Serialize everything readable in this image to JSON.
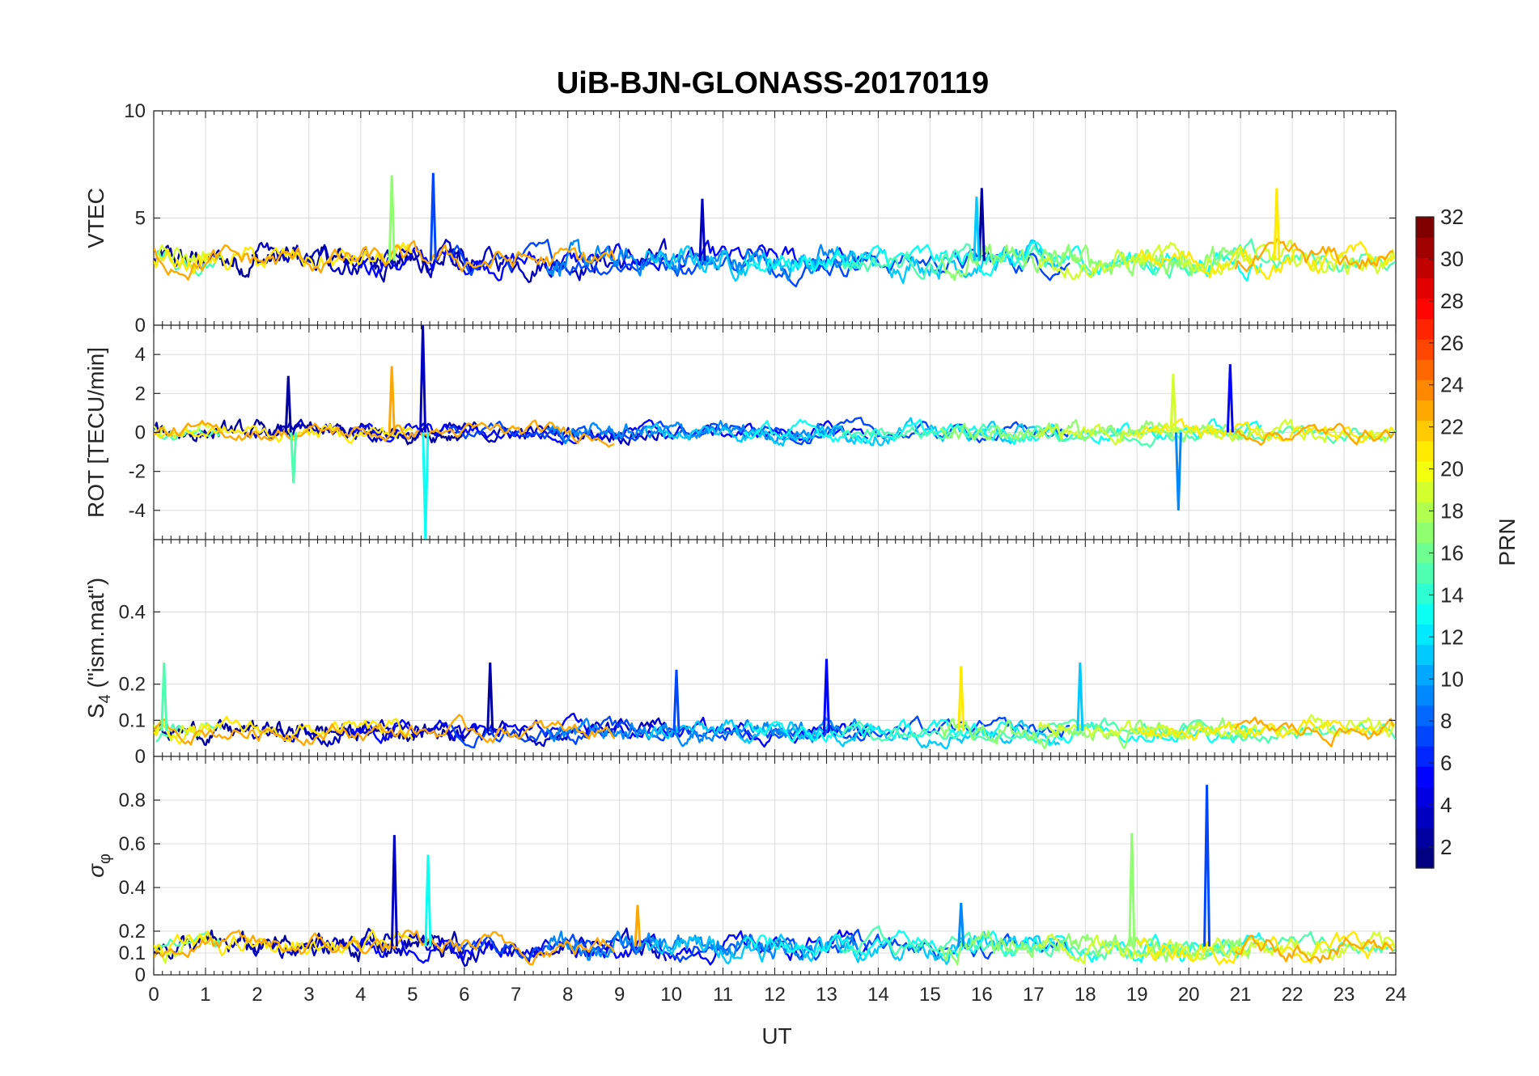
{
  "chart_data": {
    "type": "line",
    "title": "UiB-BJN-GLONASS-20170119",
    "xlabel": "UT",
    "xlim": [
      0,
      24
    ],
    "xticks": [
      "0",
      "1",
      "2",
      "3",
      "4",
      "5",
      "6",
      "7",
      "8",
      "9",
      "10",
      "11",
      "12",
      "13",
      "14",
      "15",
      "16",
      "17",
      "18",
      "19",
      "20",
      "21",
      "22",
      "23",
      "24"
    ],
    "grid": true,
    "panels": [
      {
        "id": "vtec",
        "ylabel": "VTEC",
        "ylim": [
          0,
          10
        ],
        "yticks": [
          "0",
          "5",
          "10"
        ],
        "ytick_values": [
          0,
          5,
          10
        ],
        "baseline": 3.0,
        "noise": 0.35,
        "spikes": [
          [
            16.0,
            6.4
          ],
          [
            15.9,
            6.0
          ],
          [
            21.7,
            6.4
          ],
          [
            5.4,
            7.1
          ],
          [
            4.6,
            7.0
          ],
          [
            10.6,
            5.9
          ]
        ]
      },
      {
        "id": "rot",
        "ylabel": "ROT [TECU/min]",
        "ylim": [
          -5.5,
          5.5
        ],
        "yticks": [
          "-4",
          "-2",
          "0",
          "2",
          "4"
        ],
        "ytick_values": [
          -4,
          -2,
          0,
          2,
          4
        ],
        "baseline": 0.0,
        "noise": 0.25,
        "spikes": [
          [
            5.2,
            5.5
          ],
          [
            5.25,
            -5.5
          ],
          [
            4.6,
            3.4
          ],
          [
            19.8,
            -4.0
          ],
          [
            19.7,
            3.0
          ],
          [
            20.8,
            3.5
          ],
          [
            2.7,
            -2.6
          ],
          [
            2.6,
            2.9
          ]
        ]
      },
      {
        "id": "s4",
        "ylabel_main": "S",
        "ylabel_sub": "4",
        "ylabel_rest": " (\"ism.mat\")",
        "ylim": [
          0,
          0.6
        ],
        "yticks": [
          "0",
          "0.1",
          "0.2",
          "0.4"
        ],
        "ytick_values": [
          0,
          0.1,
          0.2,
          0.4
        ],
        "baseline": 0.07,
        "noise": 0.015,
        "spikes": [
          [
            13.0,
            0.27
          ],
          [
            0.2,
            0.26
          ],
          [
            6.5,
            0.26
          ],
          [
            17.9,
            0.26
          ],
          [
            15.6,
            0.25
          ],
          [
            10.1,
            0.24
          ]
        ]
      },
      {
        "id": "sigma",
        "ylabel_main": "σ",
        "ylabel_sub": "φ",
        "ylim": [
          0,
          1
        ],
        "yticks": [
          "0",
          "0.1",
          "0.2",
          "0.4",
          "0.6",
          "0.8"
        ],
        "ytick_values": [
          0,
          0.1,
          0.2,
          0.4,
          0.6,
          0.8
        ],
        "baseline": 0.13,
        "noise": 0.03,
        "spikes": [
          [
            20.35,
            0.87
          ],
          [
            18.9,
            0.65
          ],
          [
            4.65,
            0.64
          ],
          [
            5.3,
            0.55
          ],
          [
            9.35,
            0.32
          ],
          [
            15.6,
            0.33
          ]
        ]
      }
    ],
    "colorbar": {
      "label": "PRN",
      "range": [
        1,
        32
      ],
      "ticks": [
        "2",
        "4",
        "6",
        "8",
        "10",
        "12",
        "14",
        "16",
        "18",
        "20",
        "22",
        "24",
        "26",
        "28",
        "30",
        "32"
      ],
      "tick_values": [
        2,
        4,
        6,
        8,
        10,
        12,
        14,
        16,
        18,
        20,
        22,
        24,
        26,
        28,
        30,
        32
      ],
      "colormap": "jet"
    },
    "series_prns": [
      2,
      3,
      5,
      7,
      9,
      11,
      13,
      15,
      17,
      19,
      21,
      23
    ]
  }
}
